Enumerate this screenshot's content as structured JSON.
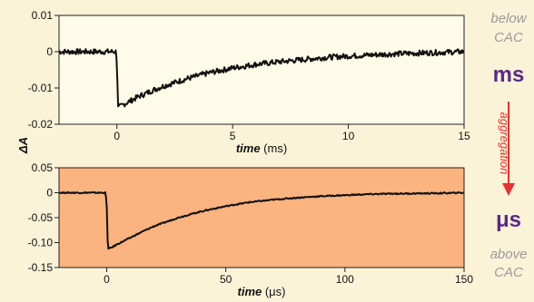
{
  "chart_data": [
    {
      "type": "line",
      "xlabel_italic": "time",
      "xlabel_unit": "(ms)",
      "xlim": [
        -2.5,
        15
      ],
      "ylim": [
        -0.02,
        0.01
      ],
      "xticks": [
        0,
        5,
        10,
        15
      ],
      "yticks": [
        0.01,
        0,
        -0.01,
        -0.02
      ],
      "ytick_labels": [
        "0.01",
        "0",
        "-0.01",
        "-0.02"
      ],
      "background": "#fffbe9",
      "series": [
        {
          "x": [
            -2.5,
            -0.05,
            0,
            0.05,
            0.3,
            0.6,
            1,
            1.5,
            2,
            3,
            4,
            5,
            6,
            7,
            8,
            9,
            10,
            11,
            12,
            13,
            14,
            15
          ],
          "y": [
            0.0,
            0.0,
            -0.002,
            -0.0155,
            -0.0145,
            -0.0135,
            -0.0122,
            -0.0108,
            -0.0095,
            -0.0075,
            -0.0058,
            -0.0045,
            -0.0035,
            -0.0028,
            -0.0022,
            -0.0016,
            -0.0012,
            -0.0009,
            -0.0006,
            -0.0004,
            -0.0002,
            0.0
          ]
        }
      ]
    },
    {
      "type": "line",
      "xlabel_italic": "time",
      "xlabel_unit": "(μs)",
      "xlim": [
        -20,
        150
      ],
      "ylim": [
        -0.15,
        0.05
      ],
      "xticks": [
        0,
        50,
        100,
        150
      ],
      "yticks": [
        0.05,
        0,
        -0.05,
        -0.1,
        -0.15
      ],
      "ytick_labels": [
        "0.05",
        "0",
        "-0.05",
        "-0.10",
        "-0.15"
      ],
      "background": "#fbb37f",
      "series": [
        {
          "x": [
            -20,
            -0.5,
            0,
            0.5,
            2,
            5,
            10,
            15,
            20,
            30,
            40,
            50,
            60,
            70,
            80,
            90,
            100,
            110,
            120,
            130,
            140,
            150
          ],
          "y": [
            0.0,
            0.0,
            -0.02,
            -0.113,
            -0.11,
            -0.102,
            -0.09,
            -0.078,
            -0.067,
            -0.05,
            -0.037,
            -0.027,
            -0.019,
            -0.014,
            -0.01,
            -0.007,
            -0.005,
            -0.003,
            -0.002,
            -0.0015,
            -0.001,
            0.0
          ]
        }
      ]
    }
  ],
  "shared_ylabel": "ΔA",
  "side_annotations": {
    "below_line1": "below",
    "below_line2": "CAC",
    "ms_label": "ms",
    "aggregation": "aggregation",
    "us_label": "μs",
    "above_line1": "above",
    "above_line2": "CAC",
    "gray_color": "#9a9a9a",
    "purple_color": "#5a2a86",
    "red_color": "#e8322f"
  }
}
